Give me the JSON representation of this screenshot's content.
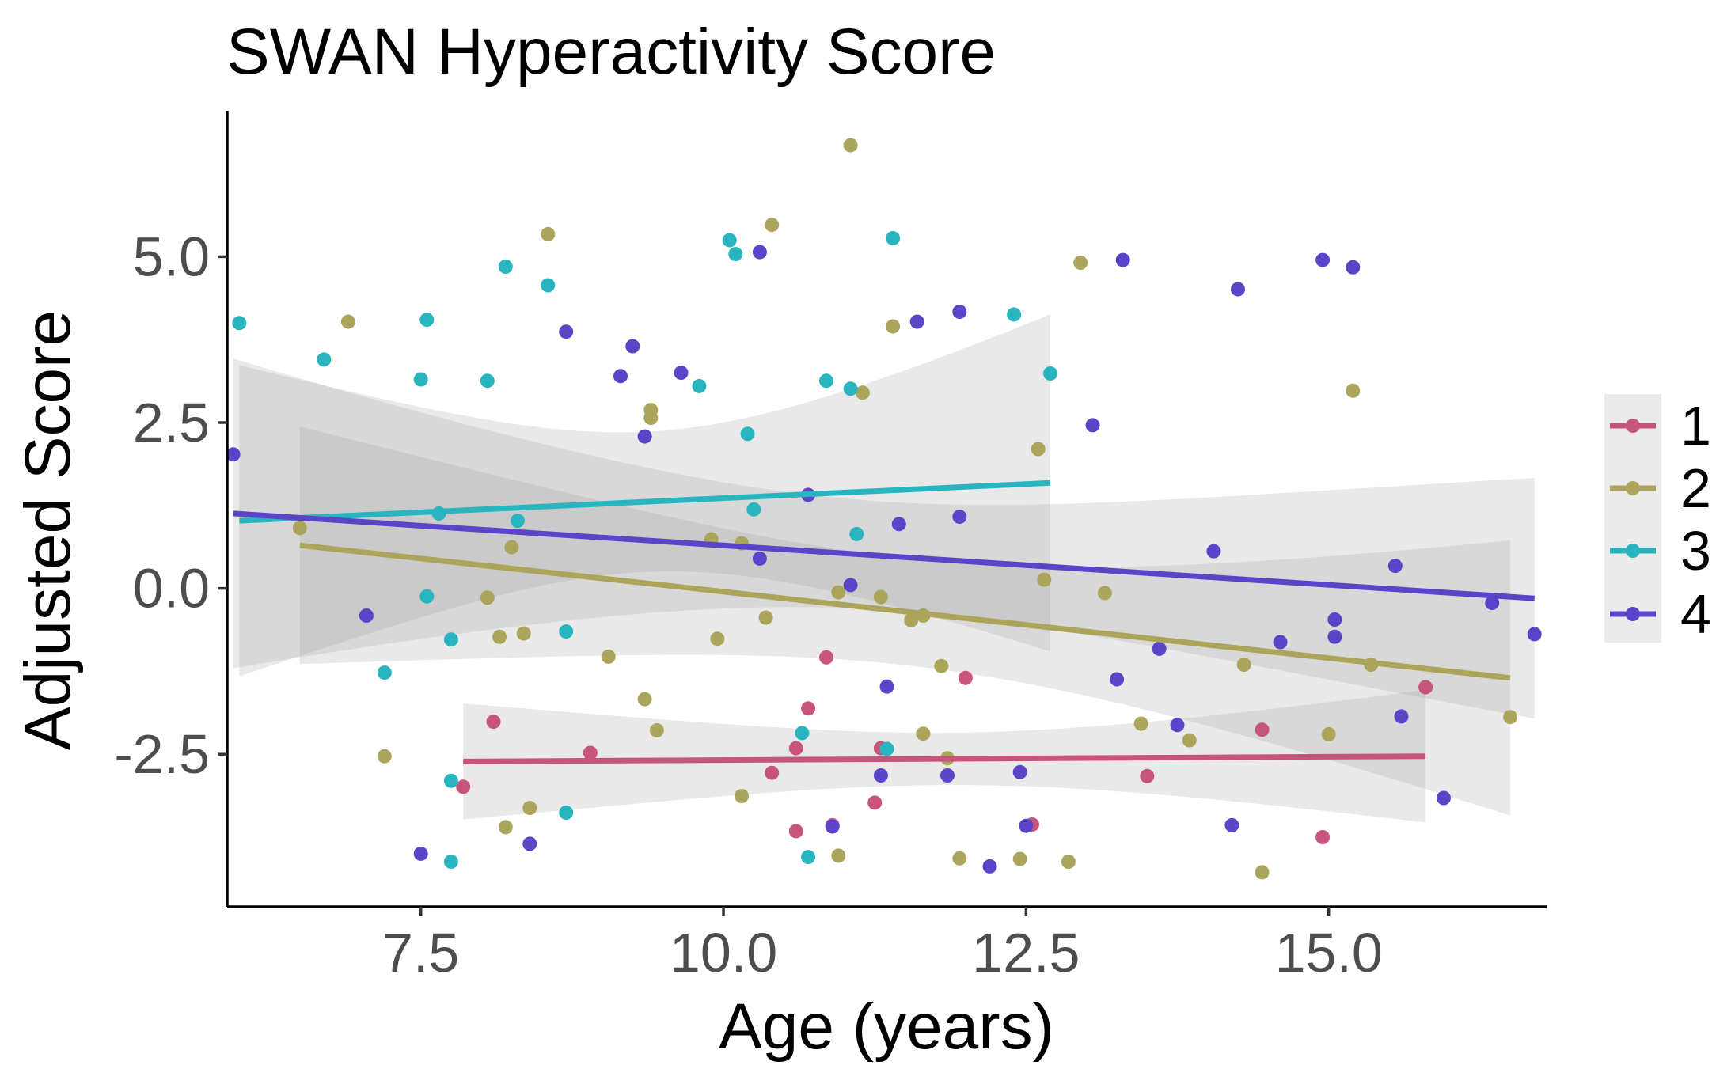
{
  "chart_data": {
    "type": "scatter",
    "title": "SWAN Hyperactivity Score",
    "xlabel": "Age (years)",
    "ylabel": "Adjusted Score",
    "xlim": [
      5.9,
      16.8
    ],
    "ylim": [
      -4.8,
      7.2
    ],
    "xticks": [
      7.5,
      10.0,
      12.5,
      15.0
    ],
    "xtick_labels": [
      "7.5",
      "10.0",
      "12.5",
      "15.0"
    ],
    "yticks": [
      -2.5,
      0.0,
      2.5,
      5.0
    ],
    "ytick_labels": [
      "-2.5",
      "0.0",
      "2.5",
      "5.0"
    ],
    "grid": false,
    "legend_position": "right",
    "series": [
      {
        "name": "1",
        "color": "#c6547d",
        "points": [
          [
            7.85,
            -2.99
          ],
          [
            8.1,
            -2.01
          ],
          [
            8.9,
            -2.48
          ],
          [
            10.6,
            -3.66
          ],
          [
            10.4,
            -2.78
          ],
          [
            10.6,
            -2.41
          ],
          [
            10.7,
            -1.81
          ],
          [
            10.85,
            -1.04
          ],
          [
            10.9,
            -3.57
          ],
          [
            11.25,
            -3.23
          ],
          [
            11.3,
            -2.41
          ],
          [
            12.0,
            -1.35
          ],
          [
            12.55,
            -3.56
          ],
          [
            13.5,
            -2.83
          ],
          [
            14.45,
            -2.13
          ],
          [
            14.95,
            -3.75
          ],
          [
            15.8,
            -1.49
          ]
        ],
        "fit": {
          "x": [
            7.85,
            15.8
          ],
          "y": [
            -2.61,
            -2.53
          ],
          "ci_lower": [
            -3.48,
            -3.53
          ],
          "ci_upper": [
            -1.73,
            -1.53
          ]
        }
      },
      {
        "name": "2",
        "color": "#aba55b",
        "points": [
          [
            6.5,
            0.91
          ],
          [
            6.9,
            4.02
          ],
          [
            7.2,
            -2.53
          ],
          [
            8.05,
            -0.14
          ],
          [
            8.15,
            -0.73
          ],
          [
            8.2,
            -3.6
          ],
          [
            8.25,
            0.62
          ],
          [
            8.35,
            -0.68
          ],
          [
            8.4,
            -3.31
          ],
          [
            8.55,
            5.34
          ],
          [
            9.05,
            -1.03
          ],
          [
            9.35,
            -1.67
          ],
          [
            9.4,
            2.57
          ],
          [
            9.4,
            2.69
          ],
          [
            9.45,
            -2.14
          ],
          [
            9.95,
            -0.76
          ],
          [
            9.9,
            0.74
          ],
          [
            10.15,
            0.68
          ],
          [
            10.15,
            -3.13
          ],
          [
            10.35,
            -0.44
          ],
          [
            10.4,
            5.48
          ],
          [
            10.95,
            -0.06
          ],
          [
            10.95,
            -4.03
          ],
          [
            11.05,
            6.68
          ],
          [
            11.15,
            2.95
          ],
          [
            11.3,
            -0.13
          ],
          [
            11.4,
            3.95
          ],
          [
            11.55,
            -0.48
          ],
          [
            11.65,
            -2.19
          ],
          [
            11.65,
            -0.41
          ],
          [
            11.8,
            -1.17
          ],
          [
            11.85,
            -2.56
          ],
          [
            11.95,
            -4.07
          ],
          [
            12.45,
            -4.08
          ],
          [
            12.6,
            2.1
          ],
          [
            12.65,
            0.13
          ],
          [
            12.85,
            -4.12
          ],
          [
            12.95,
            4.91
          ],
          [
            13.15,
            -0.07
          ],
          [
            13.45,
            -2.04
          ],
          [
            13.85,
            -2.29
          ],
          [
            14.3,
            -1.15
          ],
          [
            14.45,
            -4.28
          ],
          [
            15.0,
            -2.2
          ],
          [
            15.2,
            2.98
          ],
          [
            15.35,
            -1.15
          ],
          [
            16.5,
            -1.94
          ]
        ],
        "fit": {
          "x": [
            6.5,
            16.5
          ],
          "y": [
            0.65,
            -1.35
          ],
          "ci_lower": [
            -1.14,
            -3.43
          ],
          "ci_upper": [
            2.44,
            0.72
          ]
        }
      },
      {
        "name": "3",
        "color": "#29b5bf",
        "points": [
          [
            6.0,
            4.0
          ],
          [
            6.7,
            3.45
          ],
          [
            7.2,
            -1.27
          ],
          [
            7.5,
            3.15
          ],
          [
            7.55,
            -0.12
          ],
          [
            7.55,
            4.05
          ],
          [
            7.65,
            1.13
          ],
          [
            7.75,
            -0.77
          ],
          [
            7.75,
            -2.9
          ],
          [
            7.75,
            -4.12
          ],
          [
            8.05,
            3.13
          ],
          [
            8.2,
            4.85
          ],
          [
            8.3,
            1.02
          ],
          [
            8.55,
            4.57
          ],
          [
            8.7,
            -0.65
          ],
          [
            8.7,
            -3.38
          ],
          [
            9.8,
            3.05
          ],
          [
            10.05,
            5.25
          ],
          [
            10.1,
            5.04
          ],
          [
            10.2,
            2.33
          ],
          [
            10.25,
            1.19
          ],
          [
            10.65,
            -2.18
          ],
          [
            10.7,
            -4.05
          ],
          [
            10.85,
            3.13
          ],
          [
            11.05,
            3.01
          ],
          [
            11.1,
            0.82
          ],
          [
            11.35,
            -2.42
          ],
          [
            11.4,
            5.28
          ],
          [
            12.4,
            4.13
          ],
          [
            12.7,
            3.24
          ]
        ],
        "fit": {
          "x": [
            6.0,
            12.7
          ],
          "y": [
            1.02,
            1.59
          ],
          "ci_lower": [
            -1.23,
            -0.95
          ],
          "ci_upper": [
            3.46,
            4.13
          ]
        }
      },
      {
        "name": "4",
        "color": "#5b44c7",
        "points": [
          [
            5.95,
            2.02
          ],
          [
            7.05,
            -0.41
          ],
          [
            7.5,
            -4.0
          ],
          [
            8.4,
            -3.85
          ],
          [
            8.7,
            3.87
          ],
          [
            9.15,
            3.2
          ],
          [
            9.25,
            3.65
          ],
          [
            9.35,
            2.29
          ],
          [
            9.65,
            3.25
          ],
          [
            10.3,
            5.07
          ],
          [
            10.3,
            0.45
          ],
          [
            10.7,
            1.41
          ],
          [
            10.9,
            -3.59
          ],
          [
            11.05,
            0.05
          ],
          [
            11.3,
            -2.82
          ],
          [
            11.35,
            -1.48
          ],
          [
            11.45,
            0.97
          ],
          [
            11.6,
            4.02
          ],
          [
            11.85,
            -2.82
          ],
          [
            11.95,
            4.17
          ],
          [
            11.95,
            1.08
          ],
          [
            12.2,
            -4.19
          ],
          [
            12.45,
            -2.77
          ],
          [
            12.5,
            -3.58
          ],
          [
            13.05,
            2.46
          ],
          [
            13.25,
            -1.37
          ],
          [
            13.3,
            4.95
          ],
          [
            13.6,
            -0.91
          ],
          [
            13.75,
            -2.06
          ],
          [
            14.05,
            0.56
          ],
          [
            14.25,
            4.51
          ],
          [
            14.2,
            -3.57
          ],
          [
            14.6,
            -0.81
          ],
          [
            14.95,
            4.95
          ],
          [
            15.05,
            -0.73
          ],
          [
            15.05,
            -0.47
          ],
          [
            15.2,
            4.84
          ],
          [
            15.55,
            0.34
          ],
          [
            15.6,
            -1.93
          ],
          [
            15.95,
            -3.16
          ],
          [
            16.35,
            -0.22
          ],
          [
            16.7,
            -0.69
          ]
        ],
        "fit": {
          "x": [
            5.95,
            16.7
          ],
          "y": [
            1.13,
            -0.15
          ],
          "ci_lower": [
            -1.22,
            -1.95
          ],
          "ci_upper": [
            3.45,
            1.68
          ]
        }
      }
    ]
  }
}
